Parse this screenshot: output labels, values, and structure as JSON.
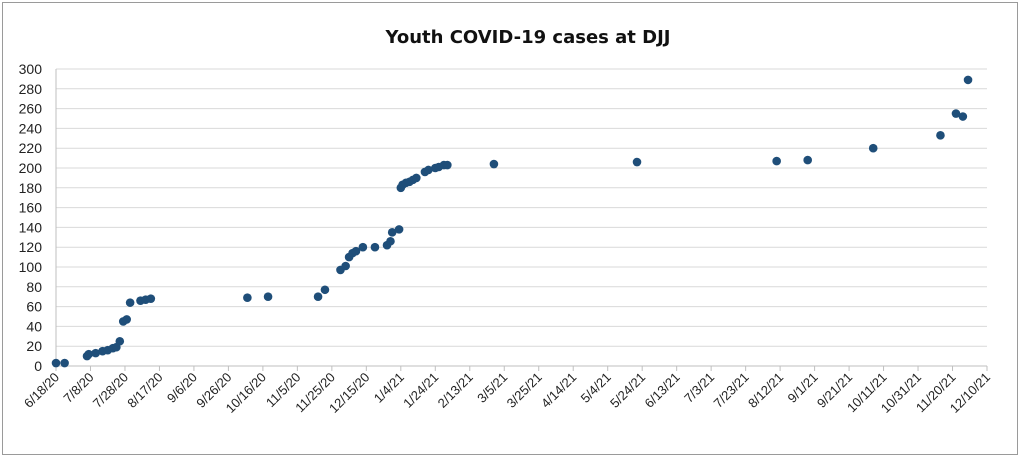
{
  "chart_data": {
    "type": "scatter",
    "title": "Youth COVID-19 cases at DJJ",
    "xlabel": "",
    "ylabel": "",
    "ylim": [
      0,
      300
    ],
    "y_ticks": [
      "0",
      "20",
      "40",
      "60",
      "80",
      "100",
      "120",
      "140",
      "160",
      "180",
      "200",
      "220",
      "240",
      "260",
      "280",
      "300"
    ],
    "x_ticks": [
      "6/18/20",
      "7/8/20",
      "7/28/20",
      "8/17/20",
      "9/6/20",
      "9/26/20",
      "10/16/20",
      "11/5/20",
      "11/25/20",
      "12/15/20",
      "1/4/21",
      "1/24/21",
      "2/13/21",
      "3/5/21",
      "3/25/21",
      "4/14/21",
      "5/4/21",
      "5/24/21",
      "6/13/21",
      "7/3/21",
      "7/23/21",
      "8/12/21",
      "9/1/21",
      "9/21/21",
      "10/11/21",
      "10/31/21",
      "11/20/21",
      "12/10/21"
    ],
    "grid": "horizontal",
    "marker_color": "#1f4e79",
    "points": [
      {
        "x": "2020-06-18",
        "y": 3
      },
      {
        "x": "2020-06-23",
        "y": 3
      },
      {
        "x": "2020-07-06",
        "y": 10
      },
      {
        "x": "2020-07-07",
        "y": 12
      },
      {
        "x": "2020-07-11",
        "y": 13
      },
      {
        "x": "2020-07-15",
        "y": 15
      },
      {
        "x": "2020-07-18",
        "y": 16
      },
      {
        "x": "2020-07-21",
        "y": 18
      },
      {
        "x": "2020-07-23",
        "y": 19
      },
      {
        "x": "2020-07-25",
        "y": 25
      },
      {
        "x": "2020-07-27",
        "y": 45
      },
      {
        "x": "2020-07-29",
        "y": 47
      },
      {
        "x": "2020-07-31",
        "y": 64
      },
      {
        "x": "2020-08-06",
        "y": 66
      },
      {
        "x": "2020-08-09",
        "y": 67
      },
      {
        "x": "2020-08-12",
        "y": 68
      },
      {
        "x": "2020-10-07",
        "y": 69
      },
      {
        "x": "2020-10-19",
        "y": 70
      },
      {
        "x": "2020-11-17",
        "y": 70
      },
      {
        "x": "2020-11-21",
        "y": 77
      },
      {
        "x": "2020-11-30",
        "y": 97
      },
      {
        "x": "2020-12-03",
        "y": 101
      },
      {
        "x": "2020-12-05",
        "y": 110
      },
      {
        "x": "2020-12-07",
        "y": 114
      },
      {
        "x": "2020-12-09",
        "y": 116
      },
      {
        "x": "2020-12-13",
        "y": 120
      },
      {
        "x": "2020-12-20",
        "y": 120
      },
      {
        "x": "2020-12-27",
        "y": 122
      },
      {
        "x": "2020-12-29",
        "y": 126
      },
      {
        "x": "2020-12-30",
        "y": 135
      },
      {
        "x": "2021-01-03",
        "y": 138
      },
      {
        "x": "2021-01-04",
        "y": 180
      },
      {
        "x": "2021-01-05",
        "y": 183
      },
      {
        "x": "2021-01-07",
        "y": 185
      },
      {
        "x": "2021-01-09",
        "y": 186
      },
      {
        "x": "2021-01-11",
        "y": 188
      },
      {
        "x": "2021-01-13",
        "y": 190
      },
      {
        "x": "2021-01-18",
        "y": 196
      },
      {
        "x": "2021-01-20",
        "y": 198
      },
      {
        "x": "2021-01-24",
        "y": 200
      },
      {
        "x": "2021-01-26",
        "y": 201
      },
      {
        "x": "2021-01-29",
        "y": 203
      },
      {
        "x": "2021-01-31",
        "y": 203
      },
      {
        "x": "2021-02-27",
        "y": 204
      },
      {
        "x": "2021-05-21",
        "y": 206
      },
      {
        "x": "2021-08-10",
        "y": 207
      },
      {
        "x": "2021-08-28",
        "y": 208
      },
      {
        "x": "2021-10-05",
        "y": 220
      },
      {
        "x": "2021-11-13",
        "y": 233
      },
      {
        "x": "2021-11-22",
        "y": 255
      },
      {
        "x": "2021-11-26",
        "y": 252
      },
      {
        "x": "2021-11-29",
        "y": 289
      }
    ]
  }
}
